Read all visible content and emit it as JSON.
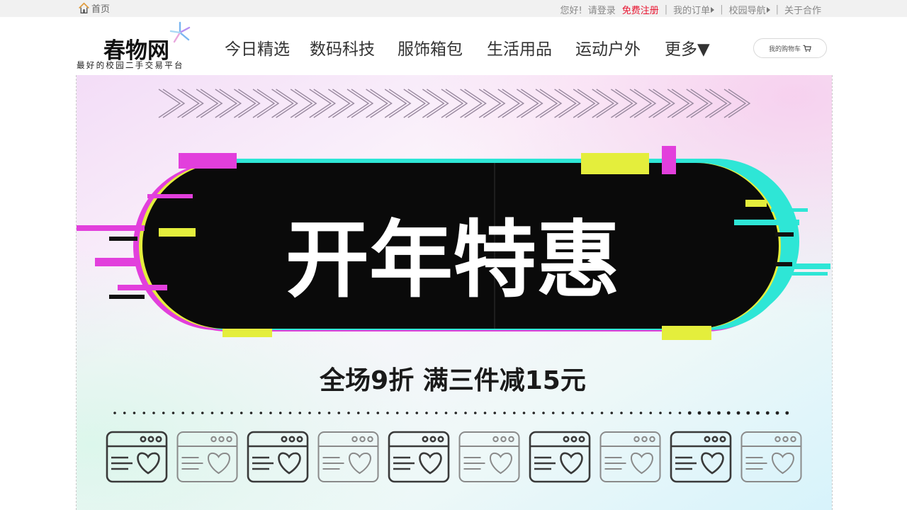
{
  "topbar": {
    "home_label": "首页",
    "greeting": "您好!",
    "login": "请登录",
    "register": "免费注册",
    "orders": "我的订单",
    "campus_nav": "校园导航",
    "about": "关于合作",
    "register_color": "#e8112d"
  },
  "logo": {
    "title": "春物网",
    "subtitle": "最好的校园二手交易平台"
  },
  "nav": {
    "items": [
      "今日精选",
      "数码科技",
      "服饰箱包",
      "生活用品",
      "运动户外"
    ],
    "more": "更多▼"
  },
  "cart": {
    "label": "我的购物车"
  },
  "banner": {
    "headline": "开年特惠",
    "promo": "全场9折  满三件减15元",
    "colors": {
      "magenta": "#e23fdc",
      "cyan": "#2ee6d6",
      "yellow": "#e4ee3c",
      "pill": "#0a0a0a"
    },
    "icon": "browser-heart-icon"
  }
}
